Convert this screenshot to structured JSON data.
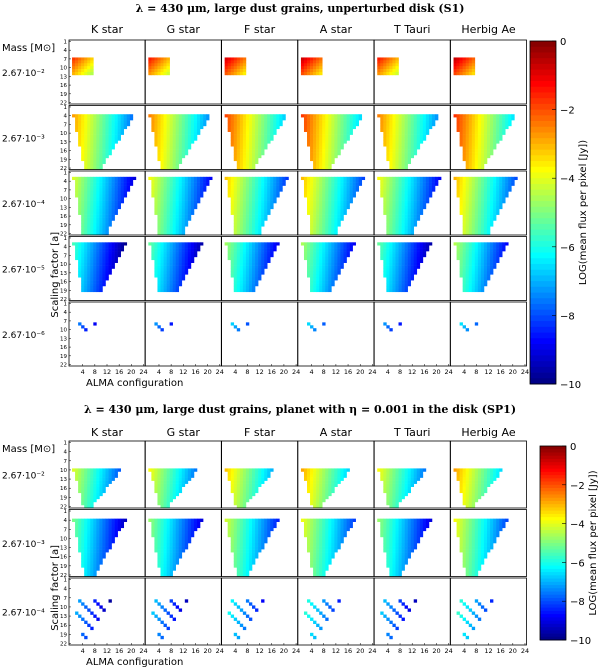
{
  "chart_data": [
    {
      "type": "heatmap",
      "title": "λ = 430 μm, large dust grains, unperturbed disk (S1)",
      "columns": [
        "K star",
        "G star",
        "F star",
        "A star",
        "T Tauri",
        "Herbig Ae"
      ],
      "row_labels": [
        "2.67·10⁻²",
        "2.67·10⁻³",
        "2.67·10⁻⁴",
        "2.67·10⁻⁵",
        "2.67·10⁻⁶"
      ],
      "mass_label": "Mass [M⊙]",
      "ylabel": "Scaling factor [a]",
      "xlabel": "ALMA configuration",
      "x_ticks": [
        4,
        8,
        12,
        16,
        20,
        24
      ],
      "y_ticks": [
        1,
        4,
        7,
        10,
        13,
        16,
        19,
        22
      ],
      "colorbar": {
        "label": "LOG(mean flux per pixel [Jy])",
        "min": -10,
        "max": 0,
        "ticks": [
          0,
          -2,
          -4,
          -6,
          -8,
          -10
        ]
      },
      "star_offsets": [
        -0.8,
        -0.5,
        0.1,
        0.2,
        -0.5,
        0.3
      ],
      "panel_levels": [
        {
          "mass": "2.67·10⁻²",
          "base": -1.0,
          "band_start": 7,
          "band_end": 12,
          "fill_x": 7,
          "diagonal": 0.0,
          "vanish": 0
        },
        {
          "mass": "2.67·10⁻³",
          "base": -2.0,
          "band_start": 4,
          "band_end": 22,
          "fill_x": 10,
          "diagonal": 0.9,
          "vanish": 0
        },
        {
          "mass": "2.67·10⁻⁴",
          "base": -3.3,
          "band_start": 3,
          "band_end": 22,
          "fill_x": 12,
          "diagonal": 0.75,
          "vanish": 0
        },
        {
          "mass": "2.67·10⁻⁵",
          "base": -4.8,
          "band_start": 3,
          "band_end": 19,
          "fill_x": 10,
          "diagonal": 0.7,
          "vanish": 0
        },
        {
          "mass": "2.67·10⁻⁶",
          "base": -6.3,
          "band_start": 8,
          "band_end": 12,
          "fill_x": 6,
          "diagonal": 0.5,
          "vanish": 1
        }
      ]
    },
    {
      "type": "heatmap",
      "title": "λ = 430 μm, large dust grains, planet with η = 0.001 in the disk (SP1)",
      "columns": [
        "K star",
        "G star",
        "F star",
        "A star",
        "T Tauri",
        "Herbig Ae"
      ],
      "row_labels": [
        "2.67·10⁻²",
        "2.67·10⁻³",
        "2.67·10⁻⁴"
      ],
      "mass_label": "Mass [M⊙]",
      "ylabel": "Scaling factor [a]",
      "xlabel": "ALMA configuration",
      "x_ticks": [
        4,
        8,
        12,
        16,
        20,
        24
      ],
      "y_ticks": [
        1,
        4,
        7,
        10,
        13,
        16,
        19,
        22
      ],
      "colorbar": {
        "label": "LOG(mean flux per pixel [Jy])",
        "min": -10,
        "max": 0,
        "ticks": [
          0,
          -2,
          -4,
          -6,
          -8,
          -10
        ]
      },
      "star_offsets": [
        -0.9,
        -0.6,
        0.0,
        0.3,
        -0.6,
        0.4
      ],
      "panel_levels": [
        {
          "mass": "2.67·10⁻²",
          "base": -3.2,
          "band_start": 10,
          "band_end": 22,
          "fill_x": 7,
          "diagonal": 0.8,
          "vanish": 0
        },
        {
          "mass": "2.67·10⁻³",
          "base": -4.2,
          "band_start": 4,
          "band_end": 22,
          "fill_x": 8,
          "diagonal": 0.85,
          "vanish": 0
        },
        {
          "mass": "2.67·10⁻⁴",
          "base": -5.8,
          "band_start": 8,
          "band_end": 22,
          "fill_x": 8,
          "diagonal": 0.8,
          "vanish": 1
        }
      ]
    }
  ]
}
